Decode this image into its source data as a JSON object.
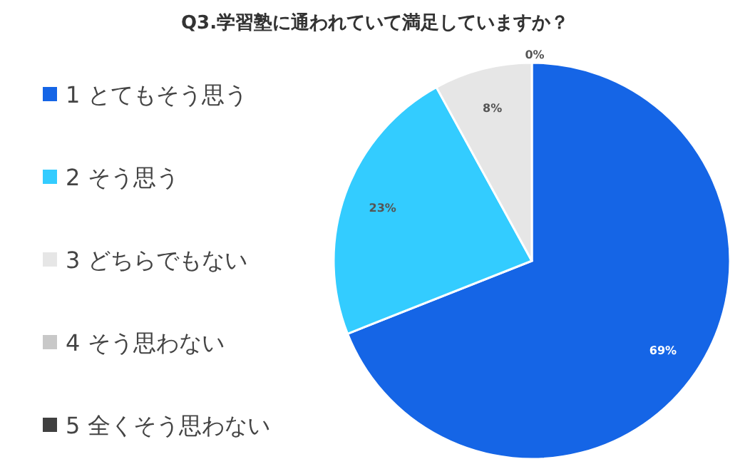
{
  "chart_data": {
    "type": "pie",
    "title": "Q3.学習塾に通われていて満足していますか？",
    "categories": [
      "1 とてもそう思う",
      "2 そう思う",
      "3 どちらでもない",
      "4 そう思わない",
      "5 全くそう思わない"
    ],
    "values": [
      69,
      23,
      8,
      0,
      0
    ],
    "colors": [
      "#1565e6",
      "#33ccff",
      "#e6e6e6",
      "#c8c8c8",
      "#404040"
    ],
    "value_labels": [
      "69%",
      "23%",
      "8%",
      "0%",
      null
    ],
    "legend": "left"
  }
}
